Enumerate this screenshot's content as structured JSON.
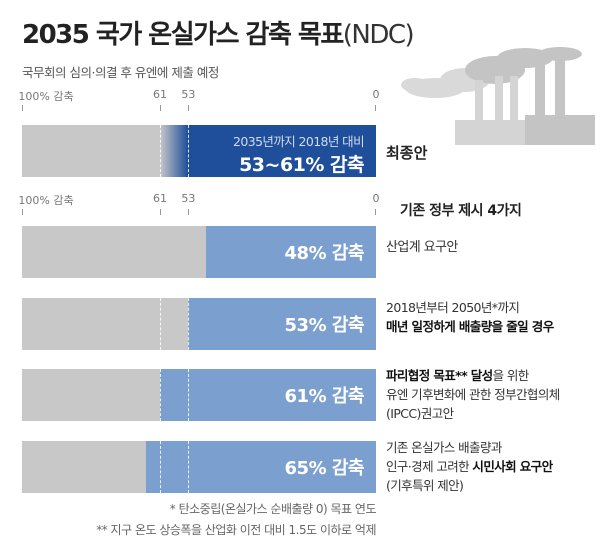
{
  "header": {
    "title_bold": "2035 국가 온실가스 감축 목표",
    "title_light": "(NDC)",
    "subtitle": "국무회의 심의·의결 후 유엔에 제출 예정"
  },
  "chart_data": {
    "type": "bar",
    "title": "2035 국가 온실가스 감축 목표(NDC)",
    "axis": {
      "ticks": [
        {
          "value": 100,
          "label": "100% 감축"
        },
        {
          "value": 61,
          "label": "61"
        },
        {
          "value": 53,
          "label": "53"
        },
        {
          "value": 0,
          "label": "0"
        }
      ],
      "range": [
        100,
        0
      ]
    },
    "final": {
      "label": "최종안",
      "range": [
        53,
        61
      ],
      "caption": "2035년까지 2018년 대비",
      "value_label": "53~61% 감축",
      "color": "#1f4e9a"
    },
    "section_title": "기존 정부 제시 4가지",
    "categories": [
      "산업계 요구안",
      "매년 일정하게 배출량을 줄일 경우",
      "IPCC 권고안",
      "시민사회 요구안"
    ],
    "values": [
      48,
      53,
      61,
      65
    ],
    "value_labels": [
      "48% 감축",
      "53% 감축",
      "61% 감축",
      "65% 감축"
    ],
    "colors": {
      "fill": "#7b9fcf",
      "base": "#c8c8c9"
    }
  },
  "descriptions": [
    {
      "lines": [
        [
          {
            "t": "산업계 요구안",
            "b": false
          }
        ]
      ]
    },
    {
      "lines": [
        [
          {
            "t": "2018년부터 2050년*까지",
            "b": false
          }
        ],
        [
          {
            "t": "매년 일정하게 배출량을 줄일 경우",
            "b": true
          }
        ]
      ]
    },
    {
      "lines": [
        [
          {
            "t": "파리협정 목표** 달성",
            "b": true
          },
          {
            "t": "을 위한",
            "b": false
          }
        ],
        [
          {
            "t": "유엔 기후변화에 관한 정부간협의체",
            "b": false
          }
        ],
        [
          {
            "t": "(IPCC)권고안",
            "b": false
          }
        ]
      ]
    },
    {
      "lines": [
        [
          {
            "t": "기존 온실가스 배출량과",
            "b": false
          }
        ],
        [
          {
            "t": "인구·경제 고려한 ",
            "b": false
          },
          {
            "t": "시민사회 요구안",
            "b": true
          }
        ],
        [
          {
            "t": "(기후특위 제안)",
            "b": false
          }
        ]
      ]
    }
  ],
  "footnotes": [
    "* 탄소중립(온실가스 순배출량 0) 목표 연도",
    "** 지구 온도 상승폭을 산업화 이전 대비 1.5도 이하로 억제"
  ]
}
